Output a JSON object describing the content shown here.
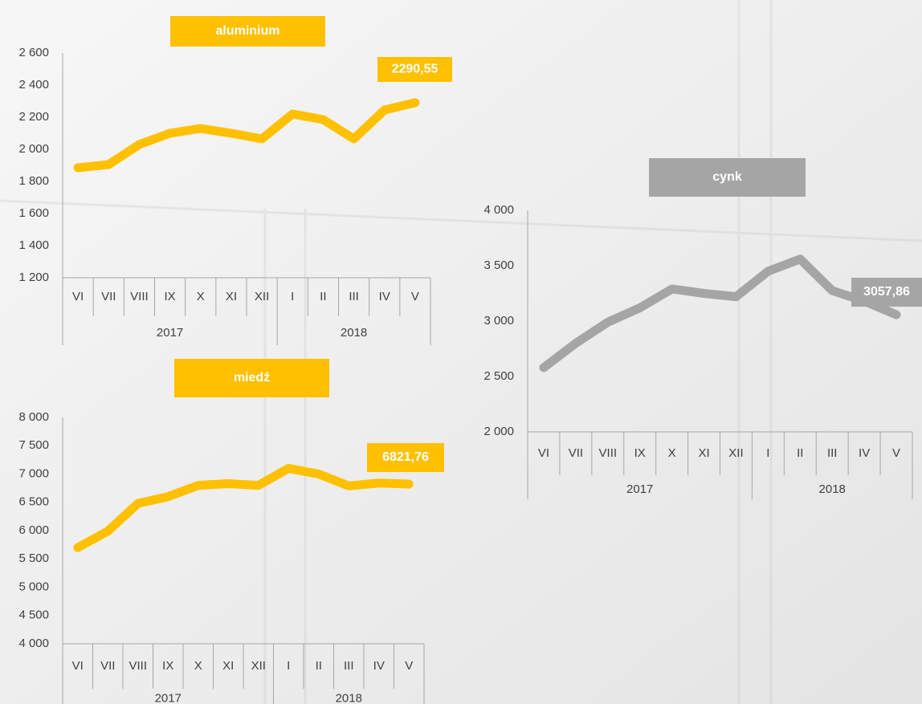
{
  "chart_data": [
    {
      "type": "line",
      "title": "aluminium",
      "categories": [
        "VI",
        "VII",
        "VIII",
        "IX",
        "X",
        "XI",
        "XII",
        "I",
        "II",
        "III",
        "IV",
        "V"
      ],
      "groups": [
        {
          "name": "2017",
          "count": 7
        },
        {
          "name": "2018",
          "count": 5
        }
      ],
      "series": [
        {
          "name": "aluminium",
          "color": "#FFC000",
          "values": [
            1885,
            1905,
            2030,
            2100,
            2130,
            2100,
            2065,
            2220,
            2185,
            2065,
            2245,
            2290.55
          ],
          "value_labels": [
            null,
            null,
            null,
            null,
            null,
            null,
            null,
            null,
            null,
            null,
            null,
            "2290,55"
          ]
        }
      ],
      "ylim": [
        1200,
        2600
      ],
      "yticks": [
        {
          "value": 1200,
          "label": "1 200"
        },
        {
          "value": 1400,
          "label": "1 400"
        },
        {
          "value": 1600,
          "label": "1 600"
        },
        {
          "value": 1800,
          "label": "1 800"
        },
        {
          "value": 2000,
          "label": "2 000"
        },
        {
          "value": 2200,
          "label": "2 200"
        },
        {
          "value": 2400,
          "label": "2 400"
        },
        {
          "value": 2600,
          "label": "2 600"
        }
      ],
      "grid": false
    },
    {
      "type": "line",
      "title": "miedź",
      "categories": [
        "VI",
        "VII",
        "VIII",
        "IX",
        "X",
        "XI",
        "XII",
        "I",
        "II",
        "III",
        "IV",
        "V"
      ],
      "groups": [
        {
          "name": "2017",
          "count": 7
        },
        {
          "name": "2018",
          "count": 5
        }
      ],
      "series": [
        {
          "name": "miedź",
          "color": "#FFC000",
          "values": [
            5700,
            5990,
            6480,
            6600,
            6800,
            6830,
            6800,
            7100,
            7000,
            6790,
            6840,
            6821.76
          ],
          "value_labels": [
            null,
            null,
            null,
            null,
            null,
            null,
            null,
            null,
            null,
            null,
            null,
            "6821,76"
          ]
        }
      ],
      "ylim": [
        4000,
        8000
      ],
      "yticks": [
        {
          "value": 4000,
          "label": "4 000"
        },
        {
          "value": 4500,
          "label": "4 500"
        },
        {
          "value": 5000,
          "label": "5 000"
        },
        {
          "value": 5500,
          "label": "5 500"
        },
        {
          "value": 6000,
          "label": "6 000"
        },
        {
          "value": 6500,
          "label": "6 500"
        },
        {
          "value": 7000,
          "label": "7 000"
        },
        {
          "value": 7500,
          "label": "7 500"
        },
        {
          "value": 8000,
          "label": "8 000"
        }
      ],
      "grid": false
    },
    {
      "type": "line",
      "title": "cynk",
      "categories": [
        "VI",
        "VII",
        "VIII",
        "IX",
        "X",
        "XI",
        "XII",
        "I",
        "II",
        "III",
        "IV",
        "V"
      ],
      "groups": [
        {
          "name": "2017",
          "count": 7
        },
        {
          "name": "2018",
          "count": 5
        }
      ],
      "series": [
        {
          "name": "cynk",
          "color": "#A5A5A5",
          "values": [
            2580,
            2800,
            2990,
            3120,
            3290,
            3250,
            3220,
            3450,
            3560,
            3275,
            3180,
            3057.86
          ],
          "value_labels": [
            null,
            null,
            null,
            null,
            null,
            null,
            null,
            null,
            null,
            null,
            null,
            "3057,86"
          ]
        }
      ],
      "ylim": [
        2000,
        4000
      ],
      "yticks": [
        {
          "value": 2000,
          "label": "2 000"
        },
        {
          "value": 2500,
          "label": "2 500"
        },
        {
          "value": 3000,
          "label": "3 000"
        },
        {
          "value": 3500,
          "label": "3 500"
        },
        {
          "value": 4000,
          "label": "4 000"
        }
      ],
      "grid": false
    }
  ]
}
